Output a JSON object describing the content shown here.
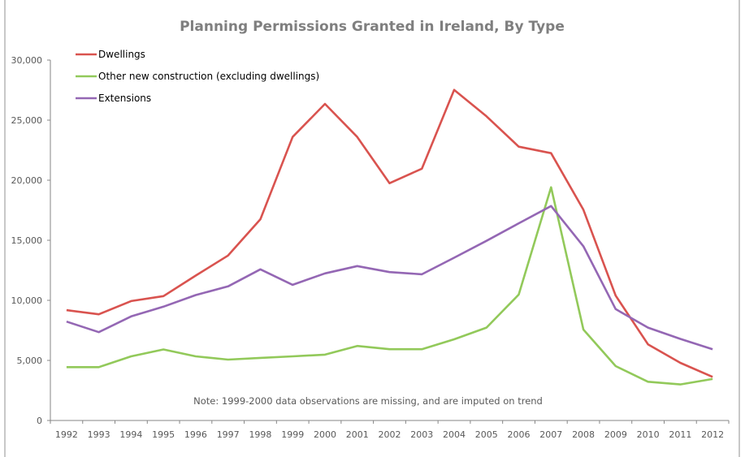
{
  "chart_data": {
    "type": "line",
    "title": "Planning Permissions Granted in Ireland, By Type",
    "xlabel": "",
    "ylabel": "",
    "ylim": [
      0,
      30000
    ],
    "yticks": [
      "0",
      "5,000",
      "10,000",
      "15,000",
      "20,000",
      "25,000",
      "30,000"
    ],
    "ytick_values": [
      0,
      5000,
      10000,
      15000,
      20000,
      25000,
      30000
    ],
    "grid": false,
    "legend_position": "top-left",
    "categories": [
      "1992",
      "1993",
      "1994",
      "1995",
      "1996",
      "1997",
      "1998",
      "1999",
      "2000",
      "2001",
      "2002",
      "2003",
      "2004",
      "2005",
      "2006",
      "2007",
      "2008",
      "2009",
      "2010",
      "2011",
      "2012"
    ],
    "series": [
      {
        "name": "Dwellings",
        "color": "#d9534f",
        "values": [
          9180,
          8840,
          9940,
          10350,
          12060,
          13730,
          16750,
          23600,
          26350,
          23600,
          19750,
          20960,
          27520,
          25320,
          22790,
          22250,
          17540,
          10390,
          6340,
          4800,
          3630
        ]
      },
      {
        "name": "Other new construction (excluding dwellings)",
        "color": "#92c95a",
        "values": [
          4440,
          4440,
          5340,
          5910,
          5340,
          5070,
          5210,
          5340,
          5480,
          6200,
          5930,
          5930,
          6760,
          7730,
          10480,
          19410,
          7570,
          4530,
          3220,
          3000,
          3450
        ]
      },
      {
        "name": "Extensions",
        "color": "#9467b4",
        "values": [
          8230,
          7350,
          8660,
          9470,
          10440,
          11160,
          12580,
          11290,
          12240,
          12850,
          12350,
          12170,
          13550,
          14950,
          16410,
          17850,
          14500,
          9270,
          7730,
          6790,
          5930
        ]
      }
    ],
    "annotations": [
      "Note: 1999-2000 data observations are missing, and are imputed on trend"
    ]
  }
}
